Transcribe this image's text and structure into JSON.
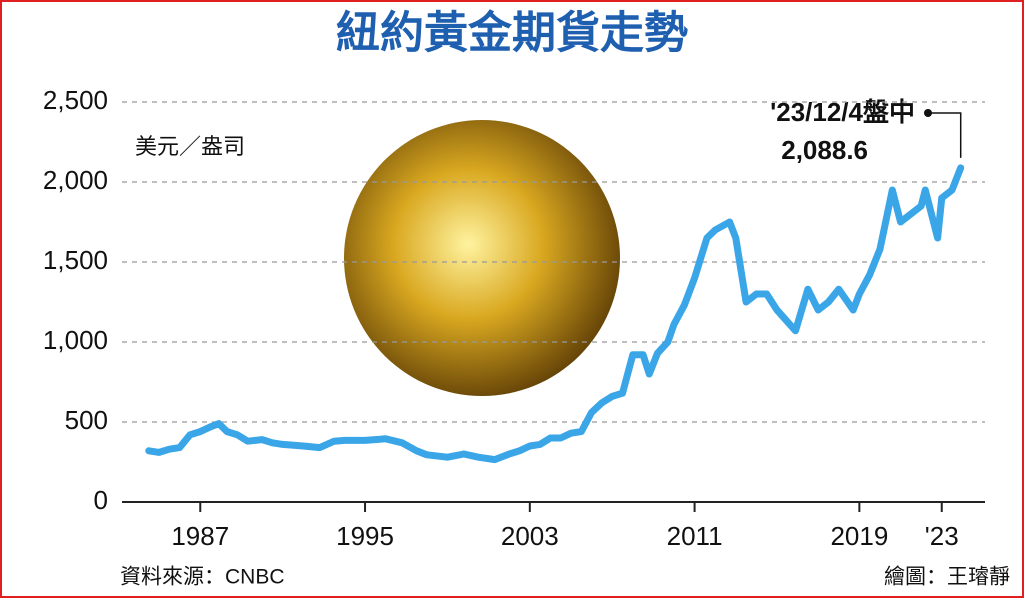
{
  "chart_data": {
    "type": "line",
    "title": "紐約黃金期貨走勢",
    "y_unit": "美元／盎司",
    "source": "資料來源：CNBC",
    "credit": "繪圖：王璿靜",
    "annotation": {
      "date": "'23/12/4盤中",
      "value": 2088.6,
      "label": "2,088.6"
    },
    "x": [
      1984.5,
      1985,
      1985.5,
      1986,
      1986.5,
      1987,
      1987.5,
      1987.9,
      1988.3,
      1988.8,
      1989.3,
      1990,
      1990.5,
      1991,
      1992,
      1992.8,
      1993.5,
      1994,
      1995,
      1996,
      1996.8,
      1997.5,
      1998,
      1999,
      1999.8,
      2000.5,
      2001.3,
      2002,
      2002.5,
      2003,
      2003.5,
      2004,
      2004.5,
      2005,
      2005.5,
      2006,
      2006.5,
      2007,
      2007.5,
      2008,
      2008.5,
      2008.8,
      2009.2,
      2009.7,
      2010,
      2010.5,
      2011,
      2011.6,
      2012,
      2012.7,
      2013,
      2013.5,
      2014,
      2014.5,
      2015,
      2015.9,
      2016.5,
      2017,
      2017.5,
      2018,
      2018.7,
      2019,
      2019.5,
      2020,
      2020.6,
      2021,
      2021.5,
      2022,
      2022.2,
      2022.8,
      2023,
      2023.5,
      2023.92
    ],
    "series": [
      {
        "color": "#3aa6e8",
        "values": [
          320,
          310,
          330,
          340,
          420,
          440,
          470,
          490,
          440,
          420,
          380,
          390,
          370,
          360,
          350,
          340,
          380,
          385,
          385,
          395,
          370,
          320,
          295,
          280,
          300,
          280,
          265,
          300,
          320,
          350,
          360,
          400,
          400,
          430,
          440,
          560,
          620,
          660,
          680,
          920,
          920,
          800,
          930,
          1000,
          1110,
          1230,
          1400,
          1650,
          1700,
          1750,
          1650,
          1250,
          1300,
          1300,
          1200,
          1070,
          1330,
          1200,
          1250,
          1330,
          1200,
          1300,
          1420,
          1580,
          1950,
          1750,
          1800,
          1850,
          1950,
          1650,
          1900,
          1950,
          2088.6
        ]
      }
    ],
    "xlim": [
      1983.2,
      2025.1
    ],
    "ylim": [
      0,
      2500
    ],
    "xticks": [
      1987,
      1995,
      2003,
      2011,
      2019,
      {
        "value": 2023,
        "label": "'23"
      }
    ],
    "yticks": [
      0,
      500,
      {
        "value": 1000,
        "label": "1,000"
      },
      {
        "value": 1500,
        "label": "1,500"
      },
      {
        "value": 2000,
        "label": "2,000"
      },
      {
        "value": 2500,
        "label": "2,500"
      }
    ],
    "grid": true
  }
}
